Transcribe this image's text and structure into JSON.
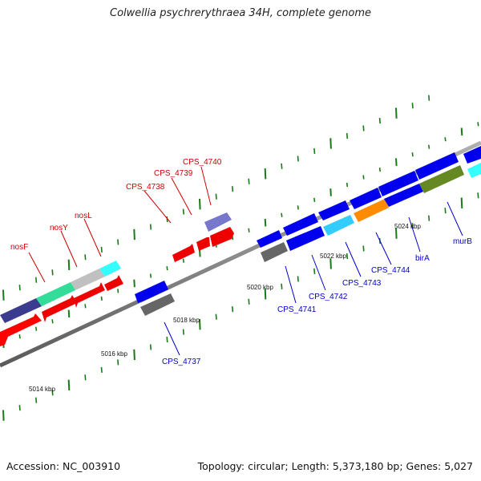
{
  "title": "Colwellia psychrerythraea 34H, complete genome",
  "footer": {
    "accession": "Accession: NC_003910",
    "topology": "Topology: circular; Length: 5,373,180 bp; Genes: 5,027"
  },
  "colors": {
    "backbone": "#8c8c8c",
    "tick": "#1a7a1a",
    "forward_label": "#cc0000",
    "reverse_label": "#0000cc"
  },
  "scale_labels": [
    "5014 kbp",
    "5016 kbp",
    "5018 kbp",
    "5020 kbp",
    "5022 kbp",
    "5024 kbp"
  ],
  "forward_genes": [
    {
      "label": "nosF",
      "color": "#ff0000"
    },
    {
      "label": "nosY",
      "color": "#ff0000"
    },
    {
      "label": "nosL",
      "color": "#ff0000"
    },
    {
      "label": "CPS_4738",
      "color": "#ff0000"
    },
    {
      "label": "CPS_4739",
      "color": "#ff0000"
    },
    {
      "label": "CPS_4740",
      "color": "#ff0000"
    }
  ],
  "reverse_genes": [
    {
      "label": "CPS_4737",
      "color": "#0000ee"
    },
    {
      "label": "CPS_4741",
      "color": "#0000ee"
    },
    {
      "label": "CPS_4742",
      "color": "#0000ee"
    },
    {
      "label": "CPS_4743",
      "color": "#0000ee"
    },
    {
      "label": "CPS_4744",
      "color": "#0000ee"
    },
    {
      "label": "birA",
      "color": "#0000ee"
    },
    {
      "label": "murB",
      "color": "#0000ee"
    }
  ]
}
